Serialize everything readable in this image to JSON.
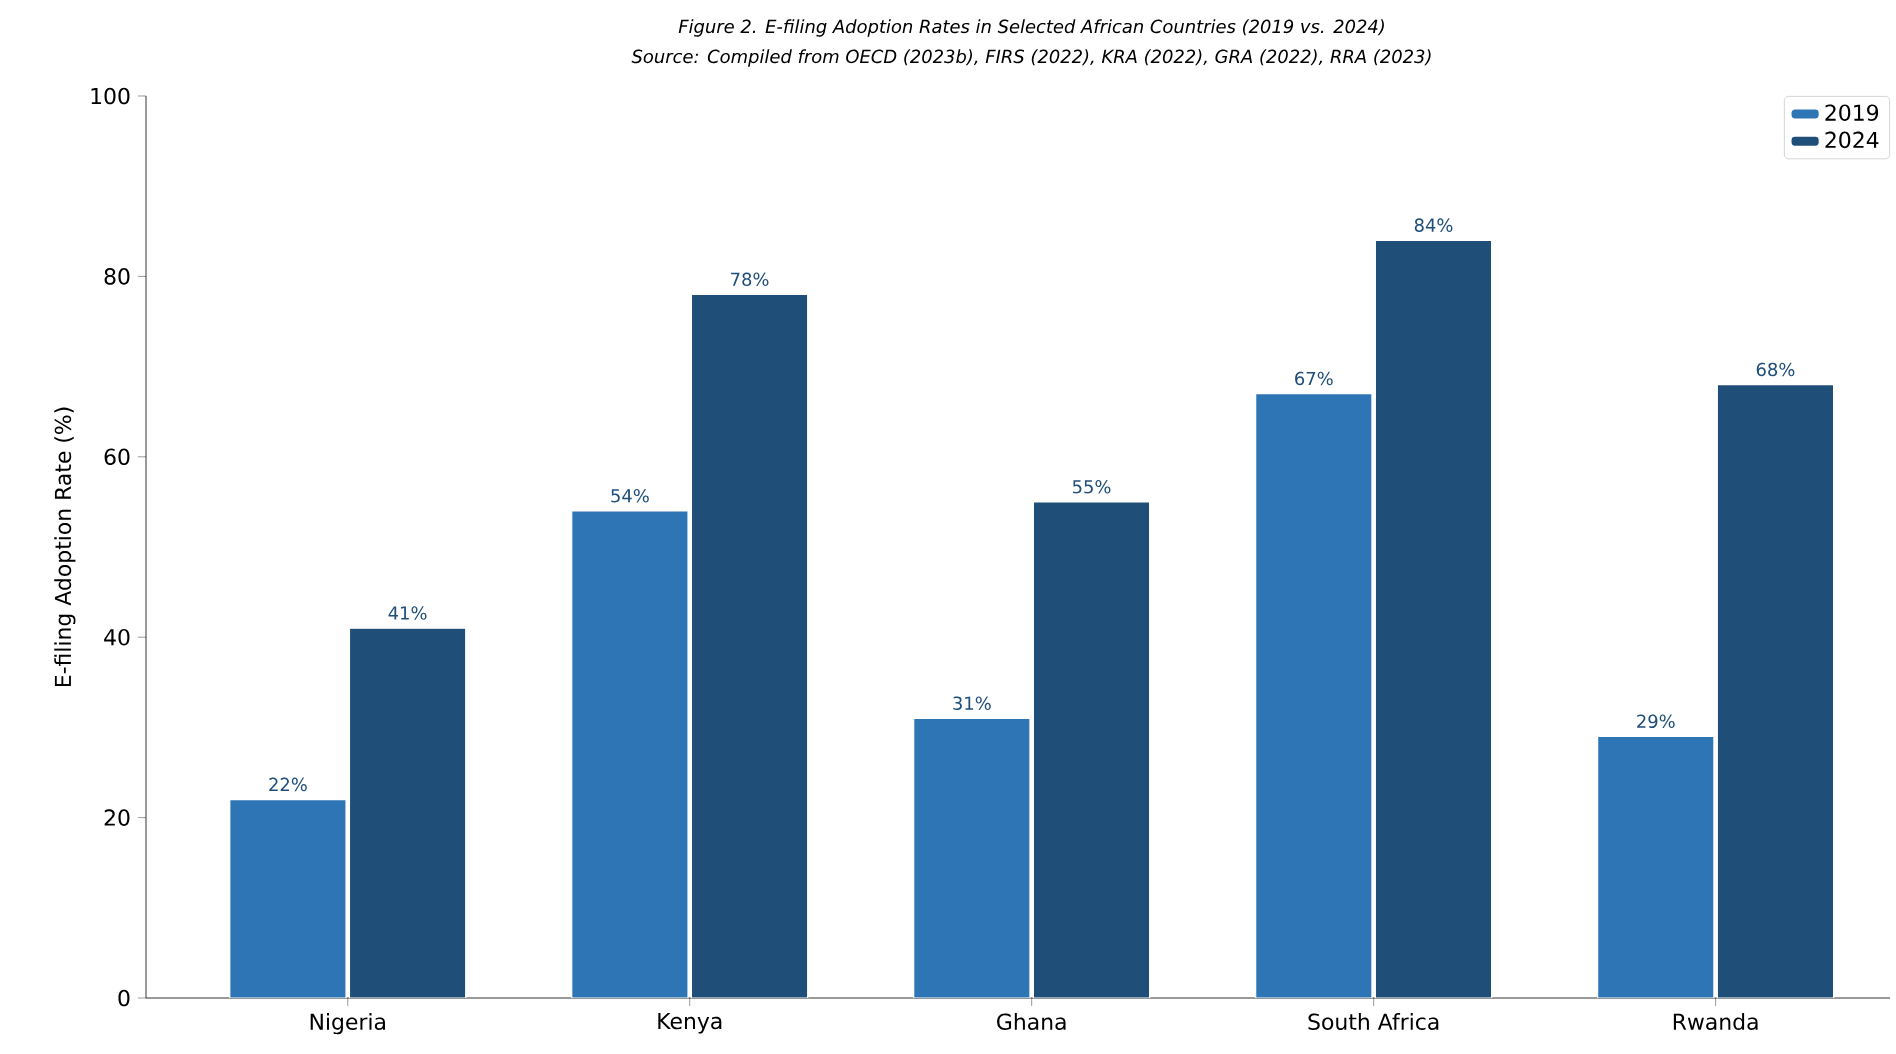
{
  "chart_data": {
    "type": "bar",
    "title": "Figure 2. E-filing Adoption Rates in Selected African Countries (2019 vs. 2024)",
    "annotations": [
      "Source: Compiled from OECD (2023b), FIRS (2022), KRA (2022), GRA (2022), RRA (2023)"
    ],
    "ylabel": "E-filing Adoption Rate (%)",
    "categories": [
      "Nigeria",
      "Kenya",
      "Ghana",
      "South Africa",
      "Rwanda"
    ],
    "series": [
      {
        "name": "2019",
        "color": "#2e75b6",
        "values": [
          22,
          54,
          31,
          67,
          29
        ],
        "value_labels": [
          "22%",
          "54%",
          "31%",
          "67%",
          "29%"
        ]
      },
      {
        "name": "2024",
        "color": "#1f4e79",
        "values": [
          41,
          78,
          55,
          84,
          68
        ],
        "value_labels": [
          "41%",
          "78%",
          "55%",
          "84%",
          "68%"
        ]
      }
    ],
    "ylim": [
      0,
      100
    ],
    "yticks": [
      0,
      20,
      40,
      60,
      80,
      100
    ],
    "grid": false,
    "legend": "top right"
  }
}
